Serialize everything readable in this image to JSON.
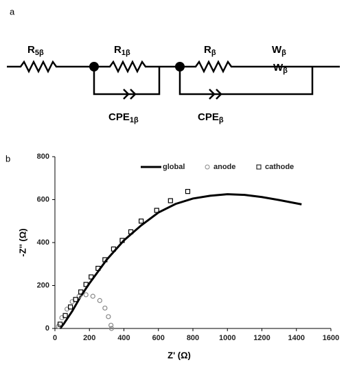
{
  "diagram": {
    "panel_label": "a",
    "labels": [
      {
        "main": "R",
        "sub": "5β"
      },
      {
        "main": "R",
        "sub": "1β"
      },
      {
        "main": "R",
        "sub": "β"
      },
      {
        "main": "W",
        "sub": "β"
      },
      {
        "main": "W",
        "sub": "β"
      },
      {
        "main": "CPE",
        "sub": "1β"
      },
      {
        "main": "CPE",
        "sub": "β"
      }
    ]
  },
  "chart_data": {
    "type": "line",
    "panel_label": "b",
    "x_label": "Z' (Ω)",
    "y_label": "-Z'' (Ω)",
    "xlim": [
      0,
      1600
    ],
    "xticks": [
      0,
      200,
      400,
      600,
      800,
      1000,
      1200,
      1400,
      1600
    ],
    "ylim": [
      0,
      800
    ],
    "yticks": [
      0,
      200,
      400,
      600,
      800
    ],
    "series": [
      {
        "name": "global",
        "color": "#000000",
        "marker": "line",
        "x": [
          30,
          50,
          100,
          150,
          200,
          300,
          400,
          500,
          600,
          700,
          800,
          900,
          1000,
          1100,
          1200,
          1300,
          1430
        ],
        "values": [
          0,
          20,
          80,
          150,
          210,
          320,
          410,
          480,
          540,
          580,
          605,
          618,
          625,
          622,
          612,
          598,
          578
        ]
      },
      {
        "name": "anode",
        "color": "#888888",
        "marker": "circle",
        "x": [
          20,
          40,
          70,
          100,
          140,
          180,
          220,
          260,
          290,
          310,
          325,
          328
        ],
        "values": [
          10,
          50,
          90,
          125,
          150,
          157,
          150,
          130,
          95,
          55,
          15,
          0
        ]
      },
      {
        "name": "cathode",
        "color": "#000000",
        "marker": "square",
        "x": [
          30,
          60,
          90,
          120,
          150,
          180,
          210,
          250,
          290,
          340,
          390,
          440,
          500,
          590,
          670,
          770
        ],
        "values": [
          20,
          60,
          100,
          135,
          170,
          205,
          240,
          280,
          320,
          370,
          410,
          450,
          500,
          550,
          595,
          638
        ]
      }
    ]
  }
}
